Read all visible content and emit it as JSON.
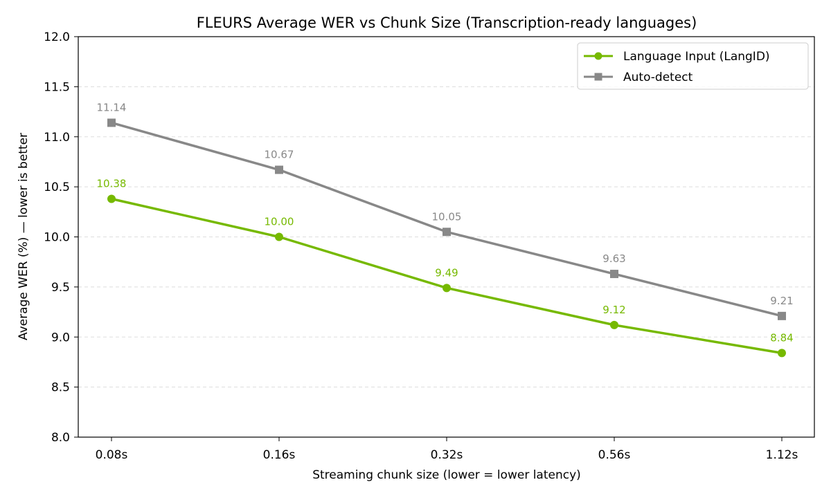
{
  "chart_data": {
    "type": "line",
    "title": "FLEURS Average WER vs Chunk Size (Transcription-ready languages)",
    "xlabel": "Streaming chunk size (lower = lower latency)",
    "ylabel": "Average WER (%)  —  lower is better",
    "categories": [
      "0.08s",
      "0.16s",
      "0.32s",
      "0.56s",
      "1.12s"
    ],
    "ylim": [
      8.0,
      12.0
    ],
    "yticks": [
      "8.0",
      "8.5",
      "9.0",
      "9.5",
      "10.0",
      "10.5",
      "11.0",
      "11.5",
      "12.0"
    ],
    "grid": "horizontal dashed",
    "legend_position": "top-right",
    "series": [
      {
        "name": "Language Input (LangID)",
        "color": "#76b900",
        "marker": "circle",
        "values": [
          10.38,
          10.0,
          9.49,
          9.12,
          8.84
        ],
        "labels": [
          "10.38",
          "10.00",
          "9.49",
          "9.12",
          "8.84"
        ]
      },
      {
        "name": "Auto-detect",
        "color": "#888888",
        "marker": "square",
        "values": [
          11.14,
          10.67,
          10.05,
          9.63,
          9.21
        ],
        "labels": [
          "11.14",
          "10.67",
          "10.05",
          "9.63",
          "9.21"
        ]
      }
    ]
  }
}
